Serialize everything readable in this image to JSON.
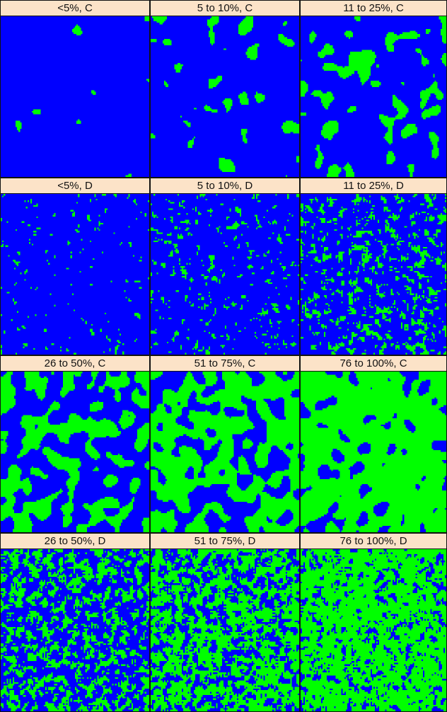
{
  "colors": {
    "background_class": "#0000ff",
    "cover_class": "#00ff00",
    "title_bg": "#fce3c8",
    "border": "#111111"
  },
  "panels": [
    {
      "title": "<5%, C",
      "cover": 0.01,
      "pattern": "clumped"
    },
    {
      "title": "5 to 10%, C",
      "cover": 0.08,
      "pattern": "clumped"
    },
    {
      "title": "11 to 25%, C",
      "cover": 0.18,
      "pattern": "clumped"
    },
    {
      "title": "<5%, D",
      "cover": 0.03,
      "pattern": "dispersed"
    },
    {
      "title": "5 to 10%, D",
      "cover": 0.08,
      "pattern": "dispersed"
    },
    {
      "title": "11 to 25%, D",
      "cover": 0.2,
      "pattern": "dispersed"
    },
    {
      "title": "26 to 50%, C",
      "cover": 0.4,
      "pattern": "clumped"
    },
    {
      "title": "51 to 75%, C",
      "cover": 0.62,
      "pattern": "clumped"
    },
    {
      "title": "76 to 100%, C",
      "cover": 0.85,
      "pattern": "clumped"
    },
    {
      "title": "26 to 50%, D",
      "cover": 0.38,
      "pattern": "dispersed"
    },
    {
      "title": "51 to 75%, D",
      "cover": 0.6,
      "pattern": "dispersed"
    },
    {
      "title": "76 to 100%, D",
      "cover": 0.8,
      "pattern": "dispersed"
    }
  ]
}
